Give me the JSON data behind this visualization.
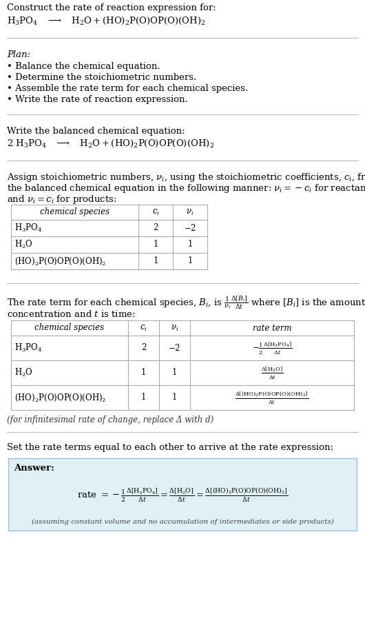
{
  "bg_color": "#ffffff",
  "text_color": "#000000",
  "title_line1": "Construct the rate of reaction expression for:",
  "plan_header": "Plan:",
  "plan_items": [
    "• Balance the chemical equation.",
    "• Determine the stoichiometric numbers.",
    "• Assemble the rate term for each chemical species.",
    "• Write the rate of reaction expression."
  ],
  "balanced_header": "Write the balanced chemical equation:",
  "rate_expr_intro": "Set the rate terms equal to each other to arrive at the rate expression:",
  "answer_box_color": "#dff0f7",
  "answer_border_color": "#a0bfd0",
  "assuming_note": "(assuming constant volume and no accumulation of intermediates or side products)",
  "infinitesimal_note": "(for infinitesimal rate of change, replace Δ with d)",
  "hline_color": "#bbbbbb",
  "table_border_color": "#aaaaaa",
  "fs": 9.5,
  "fs_small": 8.5
}
